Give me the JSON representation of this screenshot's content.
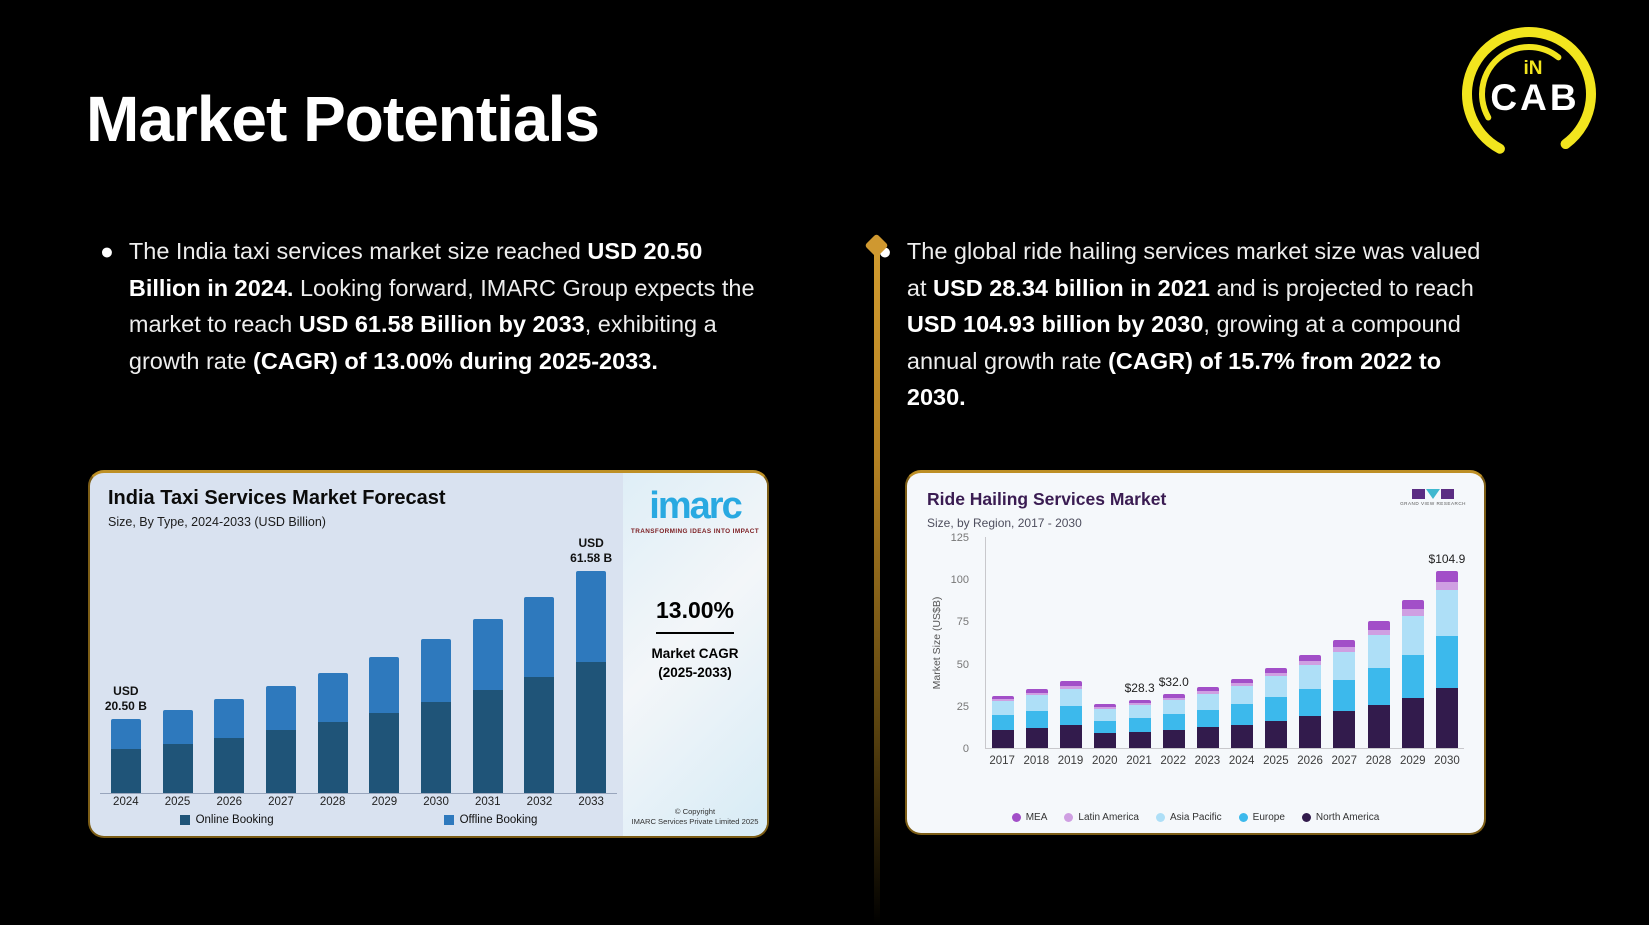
{
  "slide": {
    "title": "Market Potentials",
    "logo": {
      "top": "iN",
      "main": "CAB",
      "ring_color": "#f2e51e",
      "text_color": "#ffffff"
    },
    "colors": {
      "background": "#000000",
      "accent_gold": "#cf9830"
    }
  },
  "bullets": {
    "left": [
      {
        "t": "The India taxi services market size reached ",
        "b": false
      },
      {
        "t": "USD 20.50 Billion in 2024.",
        "b": true
      },
      {
        "t": " Looking forward, IMARC Group expects the market to reach ",
        "b": false
      },
      {
        "t": "USD 61.58 Billion by 2033",
        "b": true
      },
      {
        "t": ", exhibiting a growth rate ",
        "b": false
      },
      {
        "t": "(CAGR) of 13.00% during 2025-2033.",
        "b": true
      }
    ],
    "right": [
      {
        "t": "The global ride hailing services market size was valued at ",
        "b": false
      },
      {
        "t": "USD 28.34 billion in 2021",
        "b": true
      },
      {
        "t": " and is projected to reach ",
        "b": false
      },
      {
        "t": "USD 104.93 billion by 2030",
        "b": true
      },
      {
        "t": ", growing at a compound annual growth rate ",
        "b": false
      },
      {
        "t": "(CAGR) of 15.7% from 2022 to 2030.",
        "b": true
      }
    ]
  },
  "chart_data": [
    {
      "type": "bar",
      "stacked": true,
      "title": "India Taxi Services Market Forecast",
      "subtitle": "Size, By Type, 2024-2033 (USD Billion)",
      "categories": [
        "2024",
        "2025",
        "2026",
        "2027",
        "2028",
        "2029",
        "2030",
        "2031",
        "2032",
        "2033"
      ],
      "series": [
        {
          "name": "Online Booking",
          "color": "#1f5478",
          "values": [
            12.1,
            13.7,
            15.4,
            17.5,
            19.7,
            22.3,
            25.2,
            28.5,
            32.2,
            36.3
          ]
        },
        {
          "name": "Offline Booking",
          "color": "#2e79bd",
          "values": [
            8.4,
            9.5,
            10.8,
            12.1,
            13.7,
            15.5,
            17.5,
            19.8,
            22.3,
            25.3
          ]
        }
      ],
      "totals": [
        20.5,
        23.2,
        26.2,
        29.6,
        33.4,
        37.8,
        42.7,
        48.3,
        54.5,
        61.58
      ],
      "bar_labels": {
        "2024": [
          "USD",
          "20.50 B"
        ],
        "2033": [
          "USD",
          "61.58 B"
        ]
      },
      "xlabel": "",
      "ylabel": "",
      "ylim": [
        0,
        62
      ],
      "grid": false,
      "legend_position": "bottom",
      "plot_background": "#d9e2f0",
      "side_panel": {
        "brand": "imarc",
        "brand_color": "#29a9e1",
        "tagline": "TRANSFORMING IDEAS INTO IMPACT",
        "cagr_value": "13.00%",
        "cagr_label1": "Market CAGR",
        "cagr_label2": "(2025-2033)",
        "copyright1": "© Copyright",
        "copyright2": "IMARC Services Private Limited 2025"
      }
    },
    {
      "type": "bar",
      "stacked": true,
      "title": "Ride Hailing Services Market",
      "subtitle": "Size, by Region, 2017 - 2030",
      "source_logo_caption": "GRAND VIEW RESEARCH",
      "categories": [
        "2017",
        "2018",
        "2019",
        "2020",
        "2021",
        "2022",
        "2023",
        "2024",
        "2025",
        "2026",
        "2027",
        "2028",
        "2029",
        "2030"
      ],
      "series": [
        {
          "name": "North America",
          "color": "#321b4c",
          "values": [
            10.5,
            11.9,
            13.4,
            8.8,
            9.6,
            10.9,
            12.2,
            13.9,
            16.2,
            18.7,
            21.8,
            25.5,
            29.9,
            35.7
          ]
        },
        {
          "name": "Europe",
          "color": "#3cb9ec",
          "values": [
            9.0,
            10.2,
            11.5,
            7.5,
            8.2,
            9.3,
            10.4,
            11.9,
            13.8,
            16.0,
            18.6,
            21.8,
            25.5,
            30.4
          ]
        },
        {
          "name": "Asia Pacific",
          "color": "#aedff7",
          "values": [
            8.1,
            9.1,
            10.3,
            6.8,
            7.4,
            8.3,
            9.4,
            10.7,
            12.4,
            14.3,
            16.6,
            19.5,
            22.9,
            27.3
          ]
        },
        {
          "name": "Latin America",
          "color": "#cf9fe2",
          "values": [
            1.4,
            1.6,
            1.8,
            1.2,
            1.3,
            1.4,
            1.6,
            1.8,
            2.1,
            2.5,
            2.9,
            3.4,
            4.0,
            4.7
          ]
        },
        {
          "name": "MEA",
          "color": "#a24fc8",
          "values": [
            2.0,
            2.3,
            2.6,
            1.7,
            1.8,
            2.1,
            2.3,
            2.7,
            3.1,
            3.6,
            4.2,
            4.9,
            5.7,
            6.8
          ]
        }
      ],
      "totals": [
        31.0,
        35.1,
        39.6,
        26.0,
        28.3,
        32.0,
        35.9,
        41.0,
        47.6,
        55.1,
        64.1,
        75.1,
        88.0,
        104.9
      ],
      "bar_labels": {
        "2021": "$28.3",
        "2022": "$32.0",
        "2030": "$104.9"
      },
      "xlabel": "",
      "ylabel": "Market Size (US$B)",
      "yticks": [
        0,
        25,
        50,
        75,
        100,
        125
      ],
      "ylim": [
        0,
        125
      ],
      "grid": false,
      "legend_position": "bottom",
      "legend": [
        {
          "label": "MEA",
          "color": "#a24fc8"
        },
        {
          "label": "Latin America",
          "color": "#cf9fe2"
        },
        {
          "label": "Asia Pacific",
          "color": "#aedff7"
        },
        {
          "label": "Europe",
          "color": "#3cb9ec"
        },
        {
          "label": "North America",
          "color": "#321b4c"
        }
      ]
    }
  ]
}
